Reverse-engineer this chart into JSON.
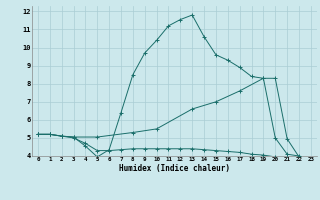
{
  "xlabel": "Humidex (Indice chaleur)",
  "bg_color": "#cce8ec",
  "grid_color": "#aacdd4",
  "line_color": "#1a6e6a",
  "xlim": [
    -0.5,
    23.5
  ],
  "ylim": [
    4,
    12.3
  ],
  "xticks": [
    0,
    1,
    2,
    3,
    4,
    5,
    6,
    7,
    8,
    9,
    10,
    11,
    12,
    13,
    14,
    15,
    16,
    17,
    18,
    19,
    20,
    21,
    22,
    23
  ],
  "yticks": [
    4,
    5,
    6,
    7,
    8,
    9,
    10,
    11,
    12
  ],
  "series1_x": [
    0,
    1,
    2,
    3,
    4,
    5,
    6,
    7,
    8,
    9,
    10,
    11,
    12,
    13,
    14,
    15,
    16,
    17,
    18,
    19,
    20,
    21,
    22,
    23
  ],
  "series1_y": [
    5.2,
    5.2,
    5.1,
    5.05,
    4.55,
    3.95,
    4.35,
    6.4,
    8.5,
    9.7,
    10.4,
    11.2,
    11.55,
    11.8,
    10.6,
    9.6,
    9.3,
    8.9,
    8.4,
    8.3,
    5.0,
    4.1,
    4.0,
    3.85
  ],
  "series2_x": [
    0,
    1,
    2,
    3,
    4,
    5,
    6,
    7,
    8,
    9,
    10,
    11,
    12,
    13,
    14,
    15,
    16,
    17,
    18,
    19,
    20,
    21,
    22,
    23
  ],
  "series2_y": [
    5.2,
    5.2,
    5.1,
    5.0,
    4.7,
    4.3,
    4.3,
    4.35,
    4.4,
    4.4,
    4.4,
    4.4,
    4.4,
    4.4,
    4.35,
    4.3,
    4.25,
    4.2,
    4.1,
    4.05,
    3.95,
    3.9,
    3.85,
    3.8
  ],
  "series3_x": [
    0,
    1,
    2,
    3,
    5,
    8,
    10,
    13,
    15,
    17,
    19,
    20,
    21,
    22,
    23
  ],
  "series3_y": [
    5.2,
    5.2,
    5.1,
    5.05,
    5.05,
    5.3,
    5.5,
    6.6,
    7.0,
    7.6,
    8.3,
    8.3,
    4.95,
    3.95,
    3.85
  ]
}
